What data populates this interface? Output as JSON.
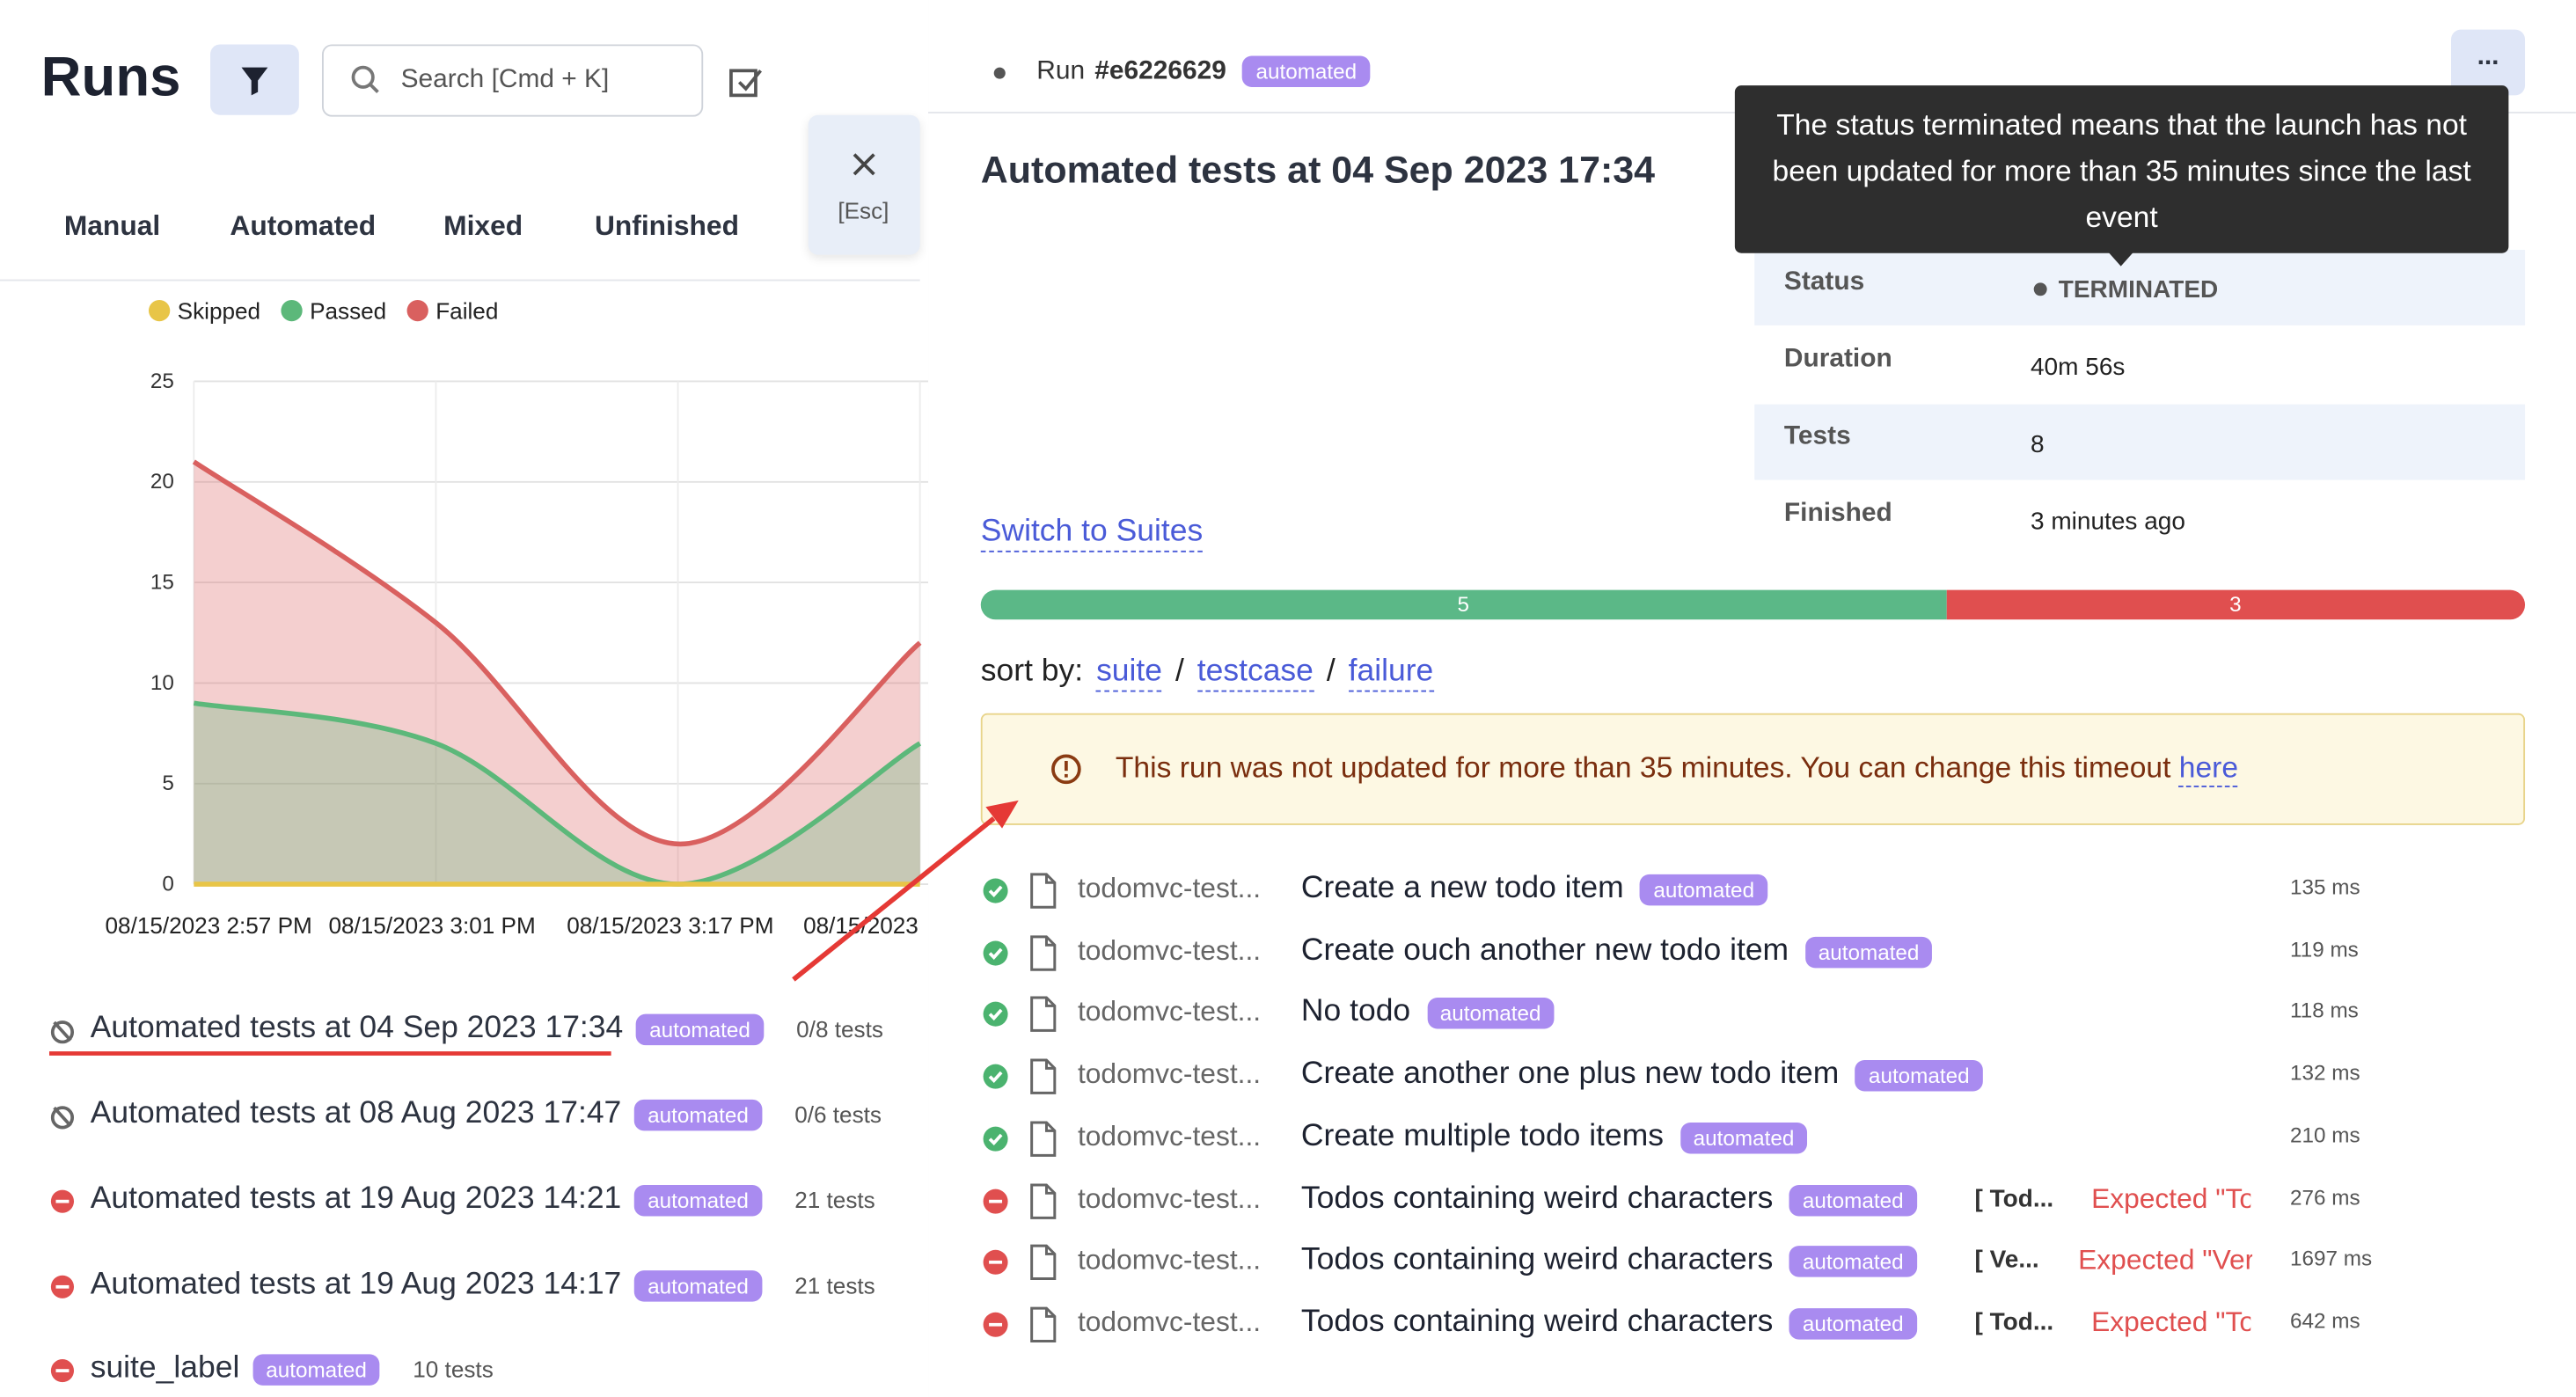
{
  "sidebar": {
    "title": "Runs",
    "search_placeholder": "Search [Cmd + K]",
    "tabs": [
      "Manual",
      "Automated",
      "Mixed",
      "Unfinished"
    ],
    "close_hint": "[Esc]"
  },
  "chart_data": {
    "type": "area",
    "categories": [
      "08/15/2023 2:57 PM",
      "08/15/2023 3:01 PM",
      "08/15/2023 3:17 PM",
      "08/15/2023"
    ],
    "series": [
      {
        "name": "Skipped",
        "color": "#e8c547",
        "values": [
          0,
          0,
          0,
          0
        ]
      },
      {
        "name": "Passed",
        "color": "#5cb87a",
        "values": [
          9,
          7,
          0,
          7
        ]
      },
      {
        "name": "Failed",
        "color": "#d9605f",
        "values": [
          21,
          13,
          2,
          12
        ]
      }
    ],
    "ylim": [
      0,
      25
    ],
    "yticks": [
      0,
      5,
      10,
      15,
      20,
      25
    ],
    "grid": true
  },
  "runs": [
    {
      "title": "Automated tests at 04 Sep 2023 17:34",
      "tag": "automated",
      "count": "0/8 tests",
      "status": "terminated"
    },
    {
      "title": "Automated tests at 08 Aug 2023 17:47",
      "tag": "automated",
      "count": "0/6 tests",
      "status": "terminated"
    },
    {
      "title": "Automated tests at 19 Aug 2023 14:21",
      "tag": "automated",
      "count": "21 tests",
      "status": "failed"
    },
    {
      "title": "Automated tests at 19 Aug 2023 14:17",
      "tag": "automated",
      "count": "21 tests",
      "status": "failed"
    },
    {
      "title": "suite_label",
      "tag": "automated",
      "count": "10 tests",
      "status": "failed"
    }
  ],
  "detail": {
    "run_label": "Run",
    "run_id": "#e6226629",
    "run_tag": "automated",
    "menu": "...",
    "title": "Automated tests at 04 Sep 2023 17:34",
    "tooltip": "The status terminated means that the launch has not been updated for more than 35 minutes since the last event",
    "fields": [
      {
        "label": "Status",
        "value": "TERMINATED"
      },
      {
        "label": "Duration",
        "value": "40m 56s"
      },
      {
        "label": "Tests",
        "value": "8"
      },
      {
        "label": "Finished",
        "value": "3 minutes ago"
      }
    ],
    "switch": "Switch to Suites",
    "progress": {
      "passed": 5,
      "failed": 3
    },
    "sort_label": "sort by:",
    "sort_options": [
      "suite",
      "testcase",
      "failure"
    ],
    "sort_sep": "/",
    "warning": "This run was not updated for more than 35 minutes. You can change this timeout",
    "warning_link": "here",
    "tests": [
      {
        "status": "passed",
        "file": "todomvc-test...",
        "title": "Create a new todo item",
        "tag": "automated",
        "duration": "135 ms"
      },
      {
        "status": "passed",
        "file": "todomvc-test...",
        "title": "Create ouch another new todo item",
        "tag": "automated",
        "duration": "119 ms"
      },
      {
        "status": "passed",
        "file": "todomvc-test...",
        "title": "No todo",
        "tag": "automated",
        "duration": "118 ms"
      },
      {
        "status": "passed",
        "file": "todomvc-test...",
        "title": "Create another one plus new todo item",
        "tag": "automated",
        "duration": "132 ms"
      },
      {
        "status": "passed",
        "file": "todomvc-test...",
        "title": "Create multiple todo items",
        "tag": "automated",
        "duration": "210 ms"
      },
      {
        "status": "failed",
        "file": "todomvc-test...",
        "title": "Todos containing weird characters",
        "tag": "automated",
        "prefix": "[ Tod...",
        "error": "Expected \"To",
        "duration": "276 ms"
      },
      {
        "status": "failed",
        "file": "todomvc-test...",
        "title": "Todos containing weird characters",
        "tag": "automated",
        "prefix": "[ Ve...",
        "error": "Expected \"Very",
        "duration": "1697 ms"
      },
      {
        "status": "failed",
        "file": "todomvc-test...",
        "title": "Todos containing weird characters",
        "tag": "automated",
        "prefix": "[ Tod...",
        "error": "Expected \"To",
        "duration": "642 ms"
      }
    ]
  }
}
